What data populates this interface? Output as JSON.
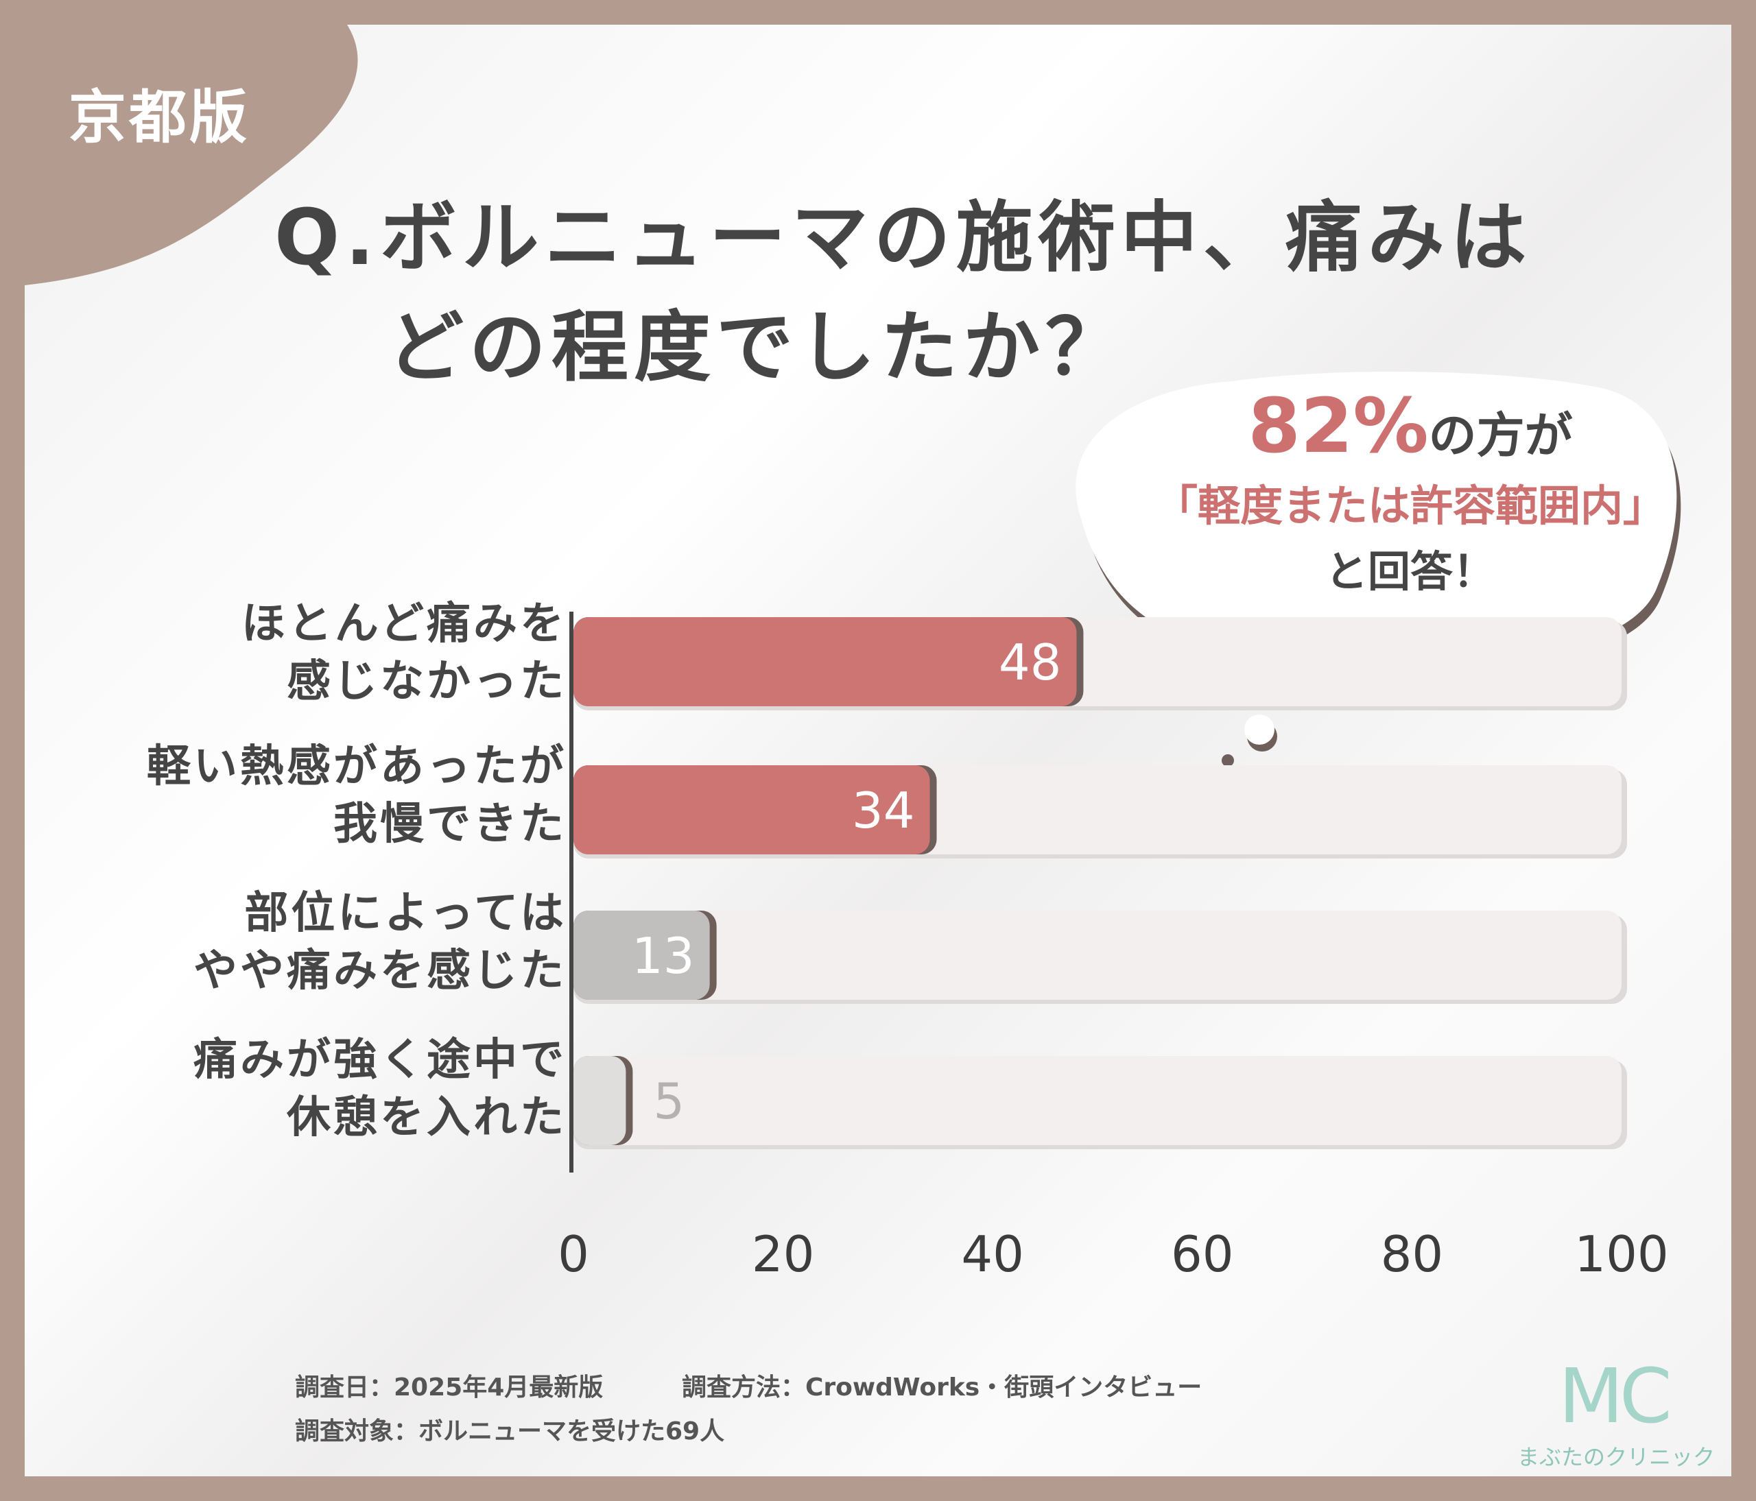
{
  "badge": "京都版",
  "question": {
    "line1": "Q.ボルニューマの施術中、痛みは",
    "line2": "どの程度でしたか？"
  },
  "callout": {
    "percent": "82%",
    "line1_suffix": "の方が",
    "line2": "「軽度または許容範囲内」",
    "line3": "と回答！"
  },
  "chart_data": {
    "type": "bar",
    "orientation": "horizontal",
    "categories": [
      [
        "ほとんど痛みを",
        "感じなかった"
      ],
      [
        "軽い熱感があったが",
        "我慢できた"
      ],
      [
        "部位によっては",
        "やや痛みを感じた"
      ],
      [
        "痛みが強く途中で",
        "休憩を入れた"
      ]
    ],
    "values": [
      48,
      34,
      13,
      5
    ],
    "value_labels": [
      "48",
      "34",
      "13",
      "5"
    ],
    "xlim": [
      0,
      100
    ],
    "x_ticks": [
      0,
      20,
      40,
      60,
      80,
      100
    ],
    "x_tick_labels": [
      "0",
      "20",
      "40",
      "60",
      "80",
      "100"
    ],
    "grid": false,
    "legend": "none",
    "colors": {
      "highlight": "#cd7573",
      "muted": "#c1bebe",
      "faint": "#e0dddd",
      "track": "#f2efee"
    }
  },
  "notes": {
    "date": "調査日：2025年4月最新版",
    "method": "調査方法：CrowdWorks・街頭インタビュー",
    "target": "調査対象：ボルニューマを受けた69人"
  },
  "logo": {
    "mark": "MC",
    "name": "まぶたのクリニック"
  }
}
